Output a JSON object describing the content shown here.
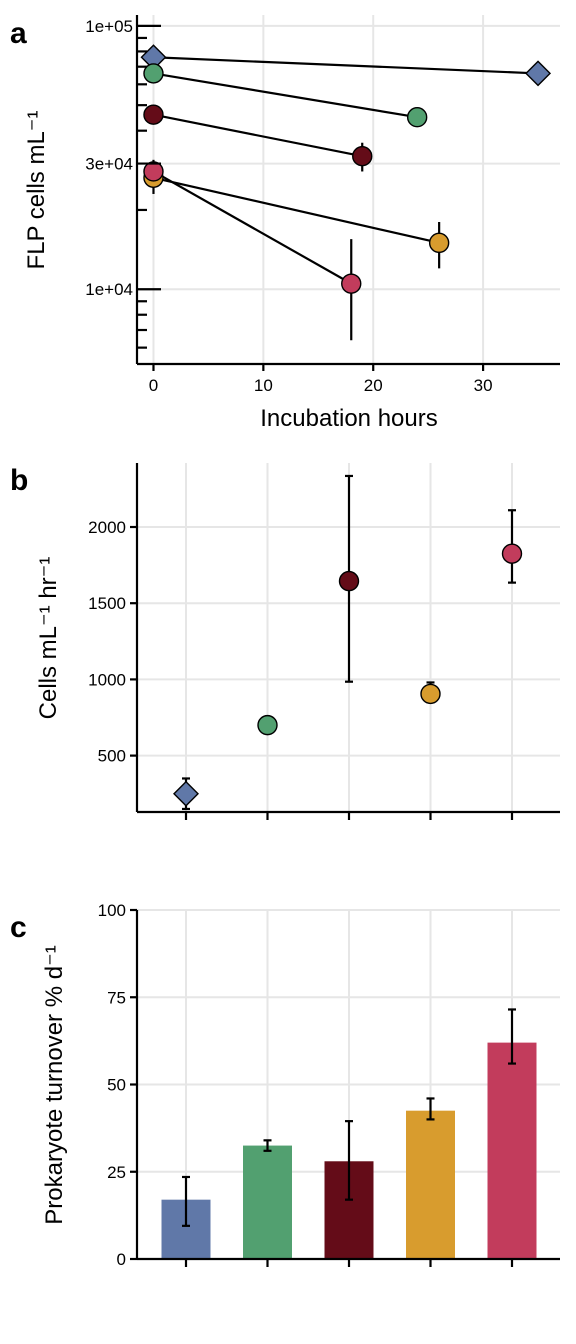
{
  "colors": {
    "blue": "#6078a8",
    "green": "#52a070",
    "darkred": "#640c18",
    "gold": "#d89c2e",
    "pink": "#c23c5c"
  },
  "chart_data": [
    {
      "panel": "a",
      "type": "scatter",
      "xlabel": "Incubation hours",
      "ylabel": "FLP cells mL⁻¹",
      "y_scale": "log",
      "xlim": [
        -1.5,
        37
      ],
      "ylim": [
        5200,
        110000
      ],
      "x_ticks": [
        "0",
        "10",
        "20",
        "30"
      ],
      "y_tick_labels": [
        "1e+04",
        "3e+04",
        "1e+05"
      ],
      "grid": true,
      "series": [
        {
          "color": "blue",
          "shape": "diamond",
          "x": [
            0,
            35
          ],
          "y": [
            76000,
            66000
          ],
          "err_low": [
            null,
            null
          ],
          "err_high": [
            null,
            null
          ]
        },
        {
          "color": "green",
          "shape": "circle",
          "x": [
            0,
            24
          ],
          "y": [
            66000,
            45000
          ],
          "err_low": [
            null,
            43000
          ],
          "err_high": [
            null,
            47000
          ]
        },
        {
          "color": "darkred",
          "shape": "circle",
          "x": [
            0,
            19
          ],
          "y": [
            46000,
            32000
          ],
          "err_low": [
            null,
            28000
          ],
          "err_high": [
            null,
            36000
          ]
        },
        {
          "color": "gold",
          "shape": "circle",
          "x": [
            0,
            26
          ],
          "y": [
            26500,
            15000
          ],
          "err_low": [
            23000,
            12000
          ],
          "err_high": [
            31000,
            18000
          ]
        },
        {
          "color": "pink",
          "shape": "circle",
          "x": [
            0,
            18
          ],
          "y": [
            28000,
            10500
          ],
          "err_low": [
            null,
            6400
          ],
          "err_high": [
            null,
            15500
          ]
        }
      ]
    },
    {
      "panel": "b",
      "type": "scatter",
      "xlabel": "",
      "ylabel": "Cells mL⁻¹ hr⁻¹",
      "ylim": [
        130,
        2420
      ],
      "y_ticks": [
        "500",
        "1000",
        "1500",
        "2000"
      ],
      "grid": true,
      "points": [
        {
          "color": "blue",
          "shape": "diamond",
          "y": 250,
          "err": [
            150,
            350
          ]
        },
        {
          "color": "green",
          "shape": "circle",
          "y": 700,
          "err": [
            null,
            null
          ]
        },
        {
          "color": "darkred",
          "shape": "circle",
          "y": 1645,
          "err": [
            985,
            2335
          ]
        },
        {
          "color": "gold",
          "shape": "circle",
          "y": 905,
          "err": [
            850,
            980
          ]
        },
        {
          "color": "pink",
          "shape": "circle",
          "y": 1825,
          "err": [
            1635,
            2110
          ]
        }
      ]
    },
    {
      "panel": "c",
      "type": "bar",
      "xlabel": "",
      "ylabel": "Prokaryote turnover % d⁻¹",
      "ylim": [
        0,
        100
      ],
      "y_ticks": [
        "0",
        "25",
        "50",
        "75",
        "100"
      ],
      "grid": true,
      "bars": [
        {
          "color": "blue",
          "value": 17,
          "err": [
            9.5,
            23.5
          ]
        },
        {
          "color": "green",
          "value": 32.5,
          "err": [
            31,
            34
          ]
        },
        {
          "color": "darkred",
          "value": 28,
          "err": [
            17,
            39.5
          ]
        },
        {
          "color": "gold",
          "value": 42.5,
          "err": [
            40,
            46
          ]
        },
        {
          "color": "pink",
          "value": 62,
          "err": [
            56,
            71.5
          ]
        }
      ]
    }
  ]
}
